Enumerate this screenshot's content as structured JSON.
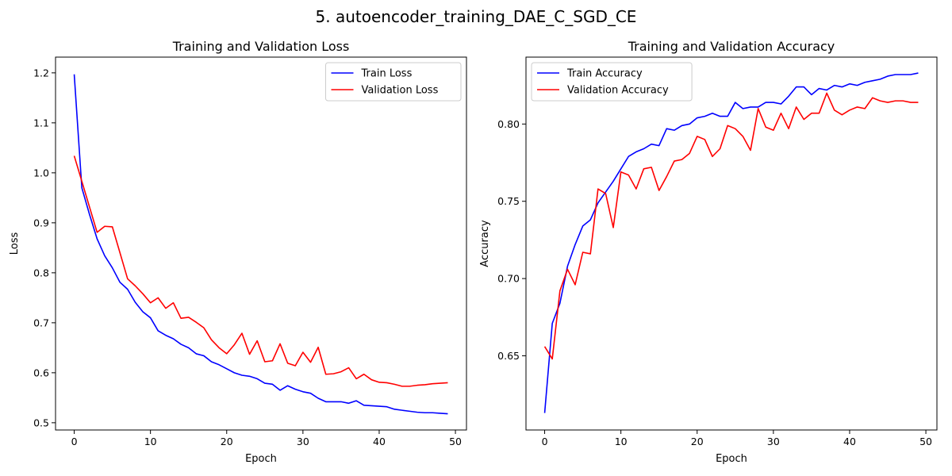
{
  "figure": {
    "title": "5. autoencoder_training_DAE_C_SGD_CE"
  },
  "chart_data": [
    {
      "type": "line",
      "title": "Training and Validation Loss",
      "xlabel": "Epoch",
      "ylabel": "Loss",
      "xlim": [
        -2.45,
        51.45
      ],
      "ylim": [
        0.4855,
        1.2315
      ],
      "xticks": [
        0,
        10,
        20,
        30,
        40,
        50
      ],
      "yticks": [
        0.5,
        0.6,
        0.7,
        0.8,
        0.9,
        1.0,
        1.1,
        1.2
      ],
      "ytick_decimals": 1,
      "grid": false,
      "legend": "upper right",
      "x": [
        0,
        1,
        2,
        3,
        4,
        5,
        6,
        7,
        8,
        9,
        10,
        11,
        12,
        13,
        14,
        15,
        16,
        17,
        18,
        19,
        20,
        21,
        22,
        23,
        24,
        25,
        26,
        27,
        28,
        29,
        30,
        31,
        32,
        33,
        34,
        35,
        36,
        37,
        38,
        39,
        40,
        41,
        42,
        43,
        44,
        45,
        46,
        47,
        48,
        49
      ],
      "series": [
        {
          "name": "Train Loss",
          "color": "#0000ff",
          "values": [
            1.197,
            0.97,
            0.917,
            0.868,
            0.834,
            0.81,
            0.781,
            0.767,
            0.741,
            0.722,
            0.71,
            0.684,
            0.675,
            0.668,
            0.657,
            0.65,
            0.638,
            0.634,
            0.622,
            0.616,
            0.608,
            0.6,
            0.595,
            0.593,
            0.588,
            0.579,
            0.577,
            0.565,
            0.574,
            0.567,
            0.562,
            0.559,
            0.549,
            0.542,
            0.542,
            0.542,
            0.539,
            0.544,
            0.535,
            0.534,
            0.533,
            0.532,
            0.527,
            0.525,
            0.523,
            0.521,
            0.52,
            0.52,
            0.519,
            0.518
          ]
        },
        {
          "name": "Validation Loss",
          "color": "#ff0000",
          "values": [
            1.034,
            0.983,
            0.932,
            0.881,
            0.893,
            0.892,
            0.84,
            0.788,
            0.774,
            0.758,
            0.74,
            0.75,
            0.729,
            0.74,
            0.709,
            0.711,
            0.701,
            0.69,
            0.666,
            0.65,
            0.638,
            0.656,
            0.679,
            0.637,
            0.664,
            0.622,
            0.624,
            0.658,
            0.619,
            0.614,
            0.641,
            0.621,
            0.651,
            0.597,
            0.598,
            0.602,
            0.61,
            0.588,
            0.597,
            0.586,
            0.581,
            0.58,
            0.577,
            0.573,
            0.573,
            0.575,
            0.576,
            0.578,
            0.579,
            0.58
          ]
        }
      ]
    },
    {
      "type": "line",
      "title": "Training and Validation Accuracy",
      "xlabel": "Epoch",
      "ylabel": "Accuracy",
      "xlim": [
        -2.45,
        51.45
      ],
      "ylim": [
        0.602,
        0.8433
      ],
      "xticks": [
        0,
        10,
        20,
        30,
        40,
        50
      ],
      "yticks": [
        0.65,
        0.7,
        0.75,
        0.8
      ],
      "ytick_decimals": 2,
      "grid": false,
      "legend": "upper left",
      "x": [
        0,
        1,
        2,
        3,
        4,
        5,
        6,
        7,
        8,
        9,
        10,
        11,
        12,
        13,
        14,
        15,
        16,
        17,
        18,
        19,
        20,
        21,
        22,
        23,
        24,
        25,
        26,
        27,
        28,
        29,
        30,
        31,
        32,
        33,
        34,
        35,
        36,
        37,
        38,
        39,
        40,
        41,
        42,
        43,
        44,
        45,
        46,
        47,
        48,
        49
      ],
      "series": [
        {
          "name": "Train Accuracy",
          "color": "#0000ff",
          "values": [
            0.613,
            0.671,
            0.684,
            0.708,
            0.722,
            0.734,
            0.738,
            0.749,
            0.756,
            0.763,
            0.771,
            0.779,
            0.782,
            0.784,
            0.787,
            0.786,
            0.797,
            0.796,
            0.799,
            0.8,
            0.804,
            0.805,
            0.807,
            0.805,
            0.805,
            0.814,
            0.81,
            0.811,
            0.811,
            0.814,
            0.814,
            0.813,
            0.818,
            0.824,
            0.824,
            0.819,
            0.823,
            0.822,
            0.825,
            0.824,
            0.826,
            0.825,
            0.827,
            0.828,
            0.829,
            0.831,
            0.832,
            0.832,
            0.832,
            0.833
          ]
        },
        {
          "name": "Validation Accuracy",
          "color": "#ff0000",
          "values": [
            0.656,
            0.648,
            0.692,
            0.706,
            0.696,
            0.717,
            0.716,
            0.758,
            0.755,
            0.733,
            0.769,
            0.767,
            0.758,
            0.771,
            0.772,
            0.757,
            0.766,
            0.776,
            0.777,
            0.781,
            0.792,
            0.79,
            0.779,
            0.784,
            0.799,
            0.797,
            0.792,
            0.783,
            0.81,
            0.798,
            0.796,
            0.807,
            0.797,
            0.811,
            0.803,
            0.807,
            0.807,
            0.82,
            0.809,
            0.806,
            0.809,
            0.811,
            0.81,
            0.817,
            0.815,
            0.814,
            0.815,
            0.815,
            0.814,
            0.814
          ]
        }
      ]
    }
  ]
}
